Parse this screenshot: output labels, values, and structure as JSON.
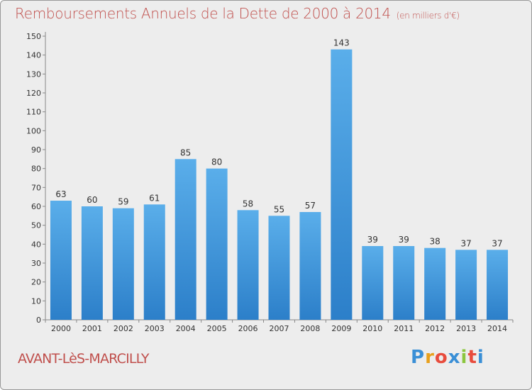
{
  "header": {
    "title": "Remboursements Annuels de la Dette de 2000 à 2014",
    "unit": "(en milliers d'€)"
  },
  "footer": {
    "place": "AVANT-LèS-MARCILLY",
    "brand_letters": [
      "P",
      "r",
      "o",
      "x",
      "i",
      "t",
      "i"
    ],
    "brand_colors": [
      "#3a8fd6",
      "#e8a01c",
      "#e84c3d",
      "#3a8fd6",
      "#8cc63f",
      "#e84c3d",
      "#3a8fd6"
    ]
  },
  "chart_data": {
    "type": "bar",
    "title": "Remboursements Annuels de la Dette de 2000 à 2014",
    "categories": [
      "2000",
      "2001",
      "2002",
      "2003",
      "2004",
      "2005",
      "2006",
      "2007",
      "2008",
      "2009",
      "2010",
      "2011",
      "2012",
      "2013",
      "2014"
    ],
    "values": [
      63,
      60,
      59,
      61,
      85,
      80,
      58,
      55,
      57,
      143,
      39,
      39,
      38,
      37,
      37
    ],
    "ylim": [
      0,
      150
    ],
    "yticks": [
      0,
      10,
      20,
      30,
      40,
      50,
      60,
      70,
      80,
      90,
      100,
      110,
      120,
      130,
      140,
      150
    ],
    "grid": false,
    "bar_color": "#4fa3e6"
  }
}
